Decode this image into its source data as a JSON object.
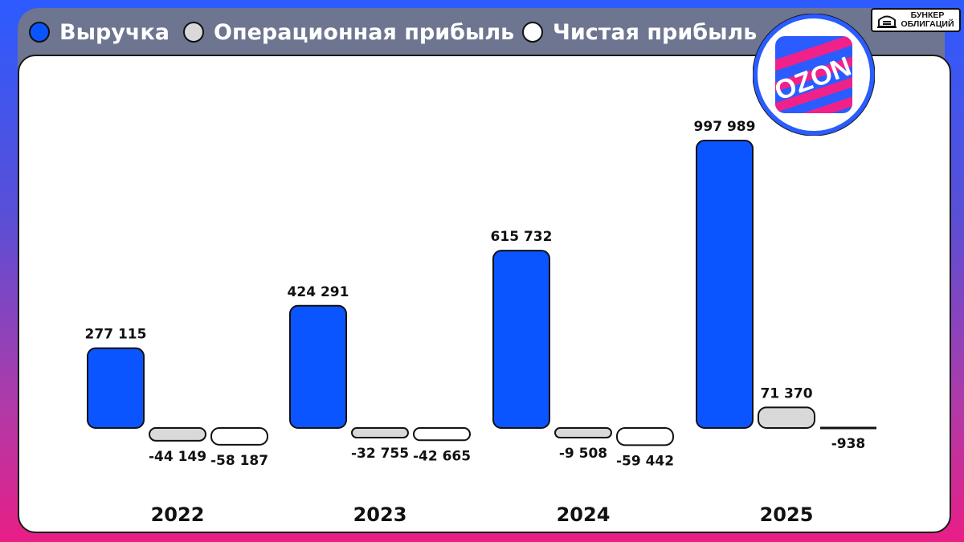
{
  "legend": [
    {
      "label": "Выручка",
      "color": "#0a55ff"
    },
    {
      "label": "Операционная прибыль",
      "color": "#d9d9d9"
    },
    {
      "label": "Чистая прибыль",
      "color": "#ffffff"
    }
  ],
  "brand": {
    "line1": "БУНКЕР",
    "line2": "ОБЛИГАЦИЙ"
  },
  "logo": {
    "text": "OZON",
    "background": "#2a5cff",
    "accent": "#f0228a"
  },
  "chart_data": {
    "type": "bar",
    "categories": [
      "2022",
      "2023",
      "2024",
      "2025"
    ],
    "series": [
      {
        "name": "Выручка",
        "values": [
          277115,
          424291,
          615732,
          997989
        ],
        "labels": [
          "277 115",
          "424 291",
          "615 732",
          "997 989"
        ],
        "color": "#0a55ff"
      },
      {
        "name": "Операционная прибыль",
        "values": [
          -44149,
          -32755,
          -9508,
          71370
        ],
        "labels": [
          "-44 149",
          "-32 755",
          "-9 508",
          "71 370"
        ],
        "color": "#d9d9d9"
      },
      {
        "name": "Чистая прибыль",
        "values": [
          -58187,
          -42665,
          -59442,
          -938
        ],
        "labels": [
          "-58 187",
          "-42 665",
          "-59 442",
          "-938"
        ],
        "color": "#ffffff"
      }
    ],
    "title": "",
    "xlabel": "",
    "ylabel": "",
    "grid": false,
    "legend_position": "top-left"
  }
}
